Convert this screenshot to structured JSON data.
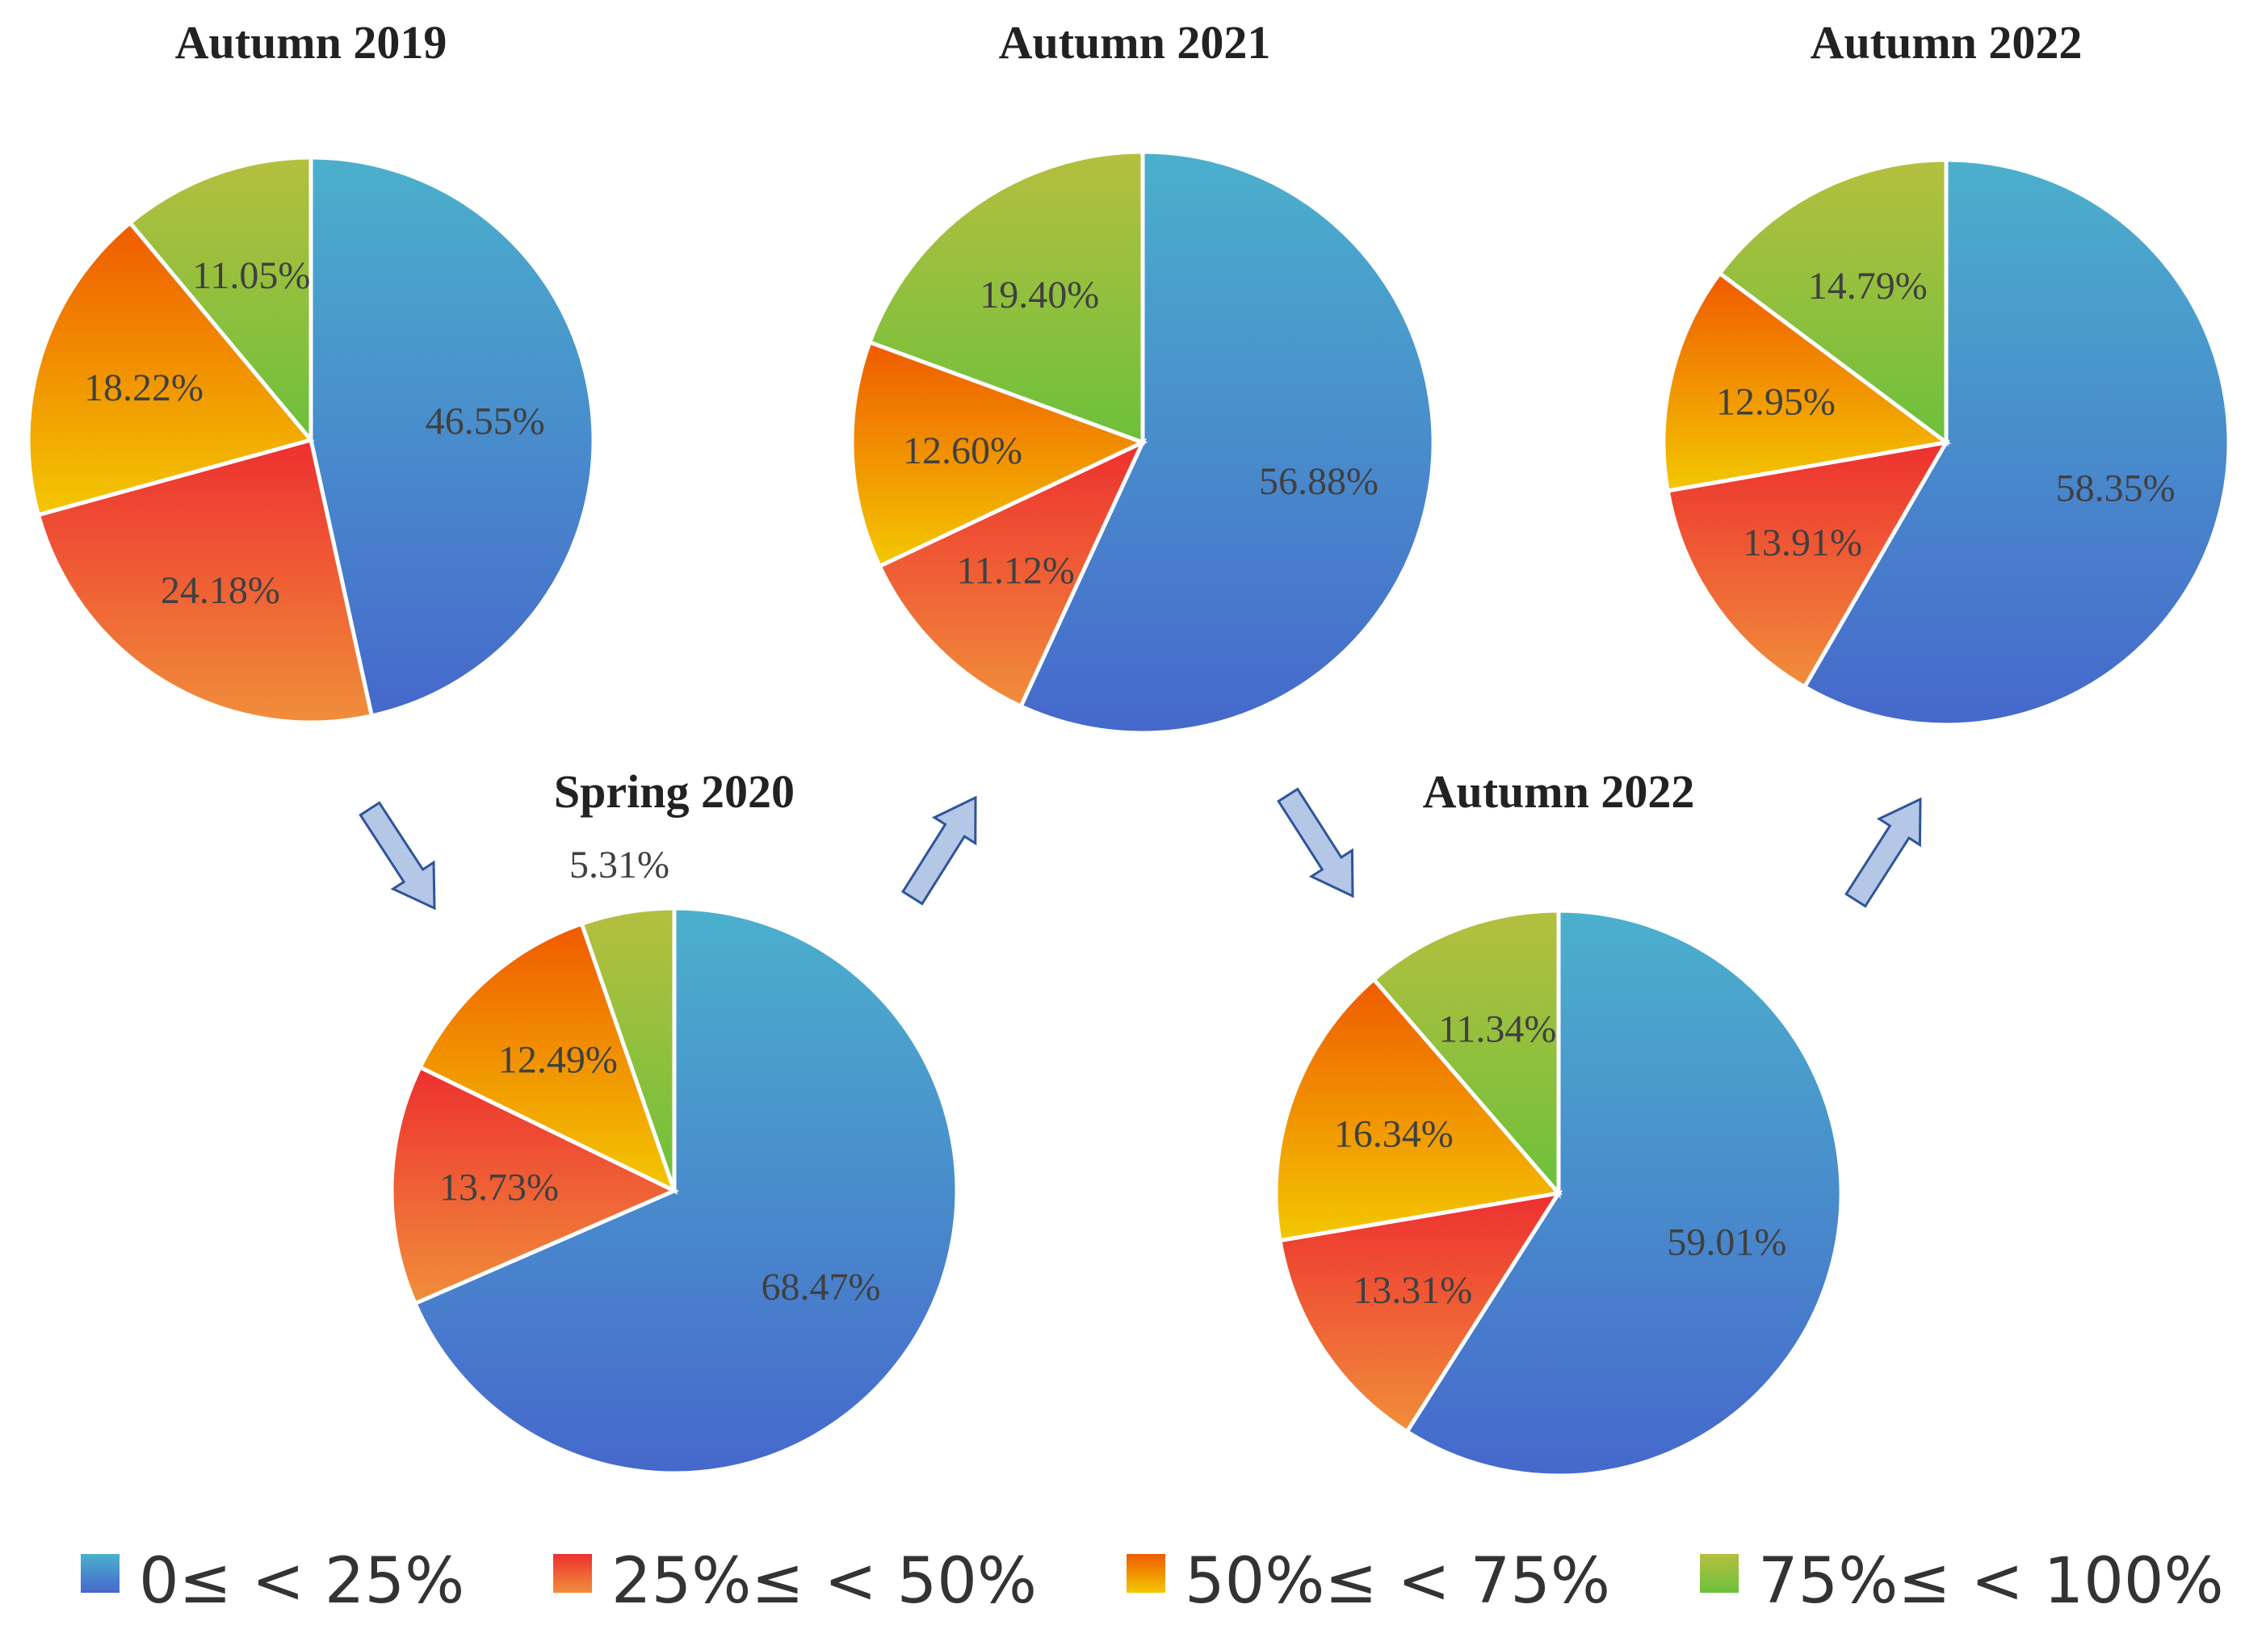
{
  "chart_data": {
    "type": "pie",
    "legend": {
      "placement": "bottom",
      "entries": [
        {
          "label": "0≤ < 25%",
          "color": "#4a74cb"
        },
        {
          "label": "25%≤ < 50%",
          "color": "#ee3c30"
        },
        {
          "label": "50%≤ < 75%",
          "color": "#f07400"
        },
        {
          "label": "75%≤ < 100%",
          "color": "#8cbc3c"
        }
      ]
    },
    "pies": [
      {
        "title": "Autumn 2019",
        "values": [
          46.55,
          24.18,
          18.22,
          11.05
        ],
        "labels": [
          "46.55%",
          "24.18%",
          "18.22%",
          "11.05%"
        ]
      },
      {
        "title": "Spring 2020",
        "values": [
          68.47,
          13.73,
          12.49,
          5.31
        ],
        "labels": [
          "68.47%",
          "13.73%",
          "12.49%",
          "5.31%"
        ]
      },
      {
        "title": "Autumn 2021",
        "values": [
          56.88,
          11.12,
          12.6,
          19.4
        ],
        "labels": [
          "56.88%",
          "11.12%",
          "12.60%",
          "19.40%"
        ]
      },
      {
        "title": "Autumn 2022",
        "values": [
          59.01,
          13.31,
          16.34,
          11.34
        ],
        "labels": [
          "59.01%",
          "13.31%",
          "16.34%",
          "11.34%"
        ]
      },
      {
        "title": "Autumn 2022",
        "values": [
          58.35,
          13.91,
          12.95,
          14.79
        ],
        "labels": [
          "58.35%",
          "13.91%",
          "12.95%",
          "14.79%"
        ]
      }
    ],
    "sequence": [
      "Autumn 2019",
      "Spring 2020",
      "Autumn 2021",
      "Autumn 2022",
      "Autumn 2022"
    ]
  }
}
